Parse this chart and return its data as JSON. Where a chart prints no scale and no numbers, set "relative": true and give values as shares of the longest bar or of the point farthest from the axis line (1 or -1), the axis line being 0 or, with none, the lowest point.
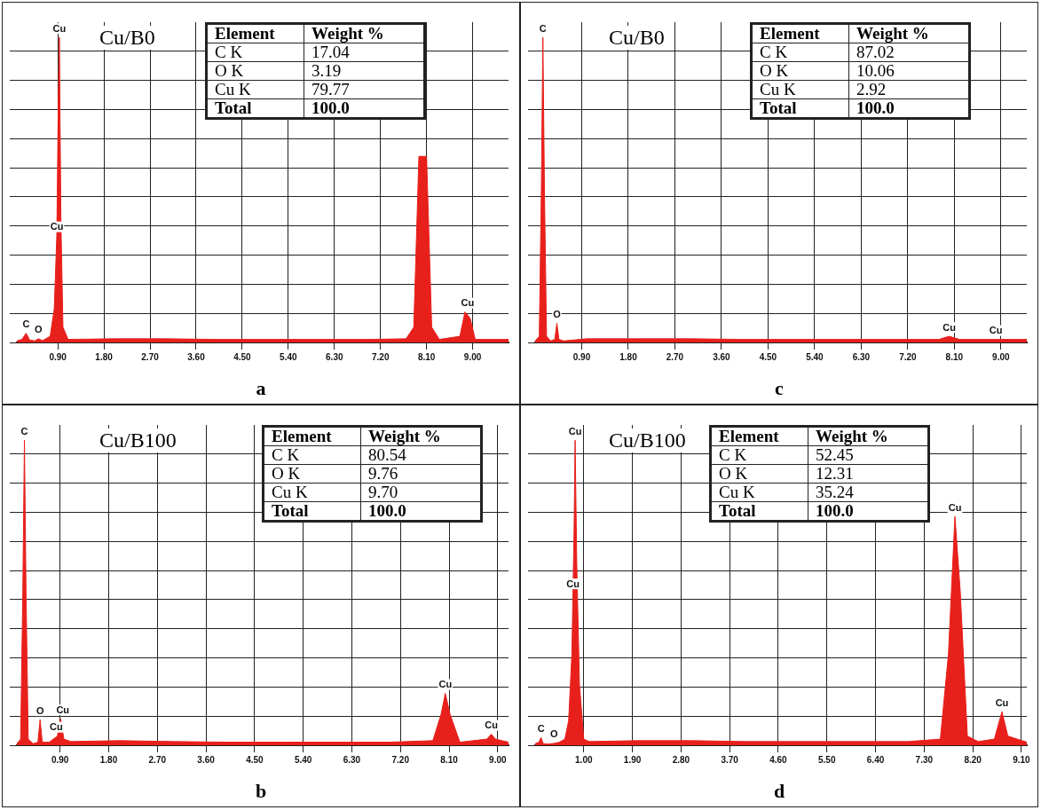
{
  "chart_data": [
    {
      "type": "area",
      "title": "Cu/B0",
      "xlabel": "a",
      "relative": true,
      "grid": true,
      "marker": "none",
      "color": "#e8201c",
      "xlim": [
        0.1,
        9.7
      ],
      "xticks": [
        {
          "value": 0.9,
          "label": "0.90"
        },
        {
          "value": 1.8,
          "label": "1.80"
        },
        {
          "value": 2.7,
          "label": "2.70"
        },
        {
          "value": 3.6,
          "label": "3.60"
        },
        {
          "value": 4.5,
          "label": "4.50"
        },
        {
          "value": 5.4,
          "label": "5.40"
        },
        {
          "value": 6.3,
          "label": "6.30"
        },
        {
          "value": 7.2,
          "label": "7.20"
        },
        {
          "value": 8.1,
          "label": "8.10"
        },
        {
          "value": 9.0,
          "label": "9.00"
        }
      ],
      "x": [
        0.1,
        0.2,
        0.28,
        0.35,
        0.45,
        0.52,
        0.6,
        0.75,
        0.83,
        0.88,
        0.91,
        0.93,
        0.96,
        1.0,
        1.1,
        2.0,
        3.0,
        4.0,
        5.0,
        6.0,
        7.0,
        7.7,
        7.85,
        7.95,
        8.1,
        8.2,
        8.35,
        8.75,
        8.85,
        8.95,
        9.05,
        9.7
      ],
      "values": [
        0.005,
        0.01,
        0.03,
        0.008,
        0.005,
        0.012,
        0.006,
        0.02,
        0.11,
        0.35,
        0.8,
        1,
        0.4,
        0.05,
        0.01,
        0.012,
        0.012,
        0.01,
        0.01,
        0.01,
        0.01,
        0.012,
        0.05,
        0.61,
        0.61,
        0.05,
        0.01,
        0.02,
        0.1,
        0.08,
        0.01,
        0.01
      ],
      "annotations": [
        "Element",
        "Weight %",
        "C K",
        "17.04",
        "O K",
        "3.19",
        "Cu K",
        "79.77",
        "Total",
        "100.0",
        {
          "text": "Cu",
          "x": 0.93,
          "y": 1
        },
        {
          "text": "Cu",
          "x": 0.88,
          "y": 0.35
        },
        {
          "text": "C",
          "x": 0.28,
          "y": 0.03
        },
        {
          "text": "O",
          "x": 0.52,
          "y": 0.012
        },
        {
          "text": "Cu",
          "x": 8.9,
          "y": 0.1
        }
      ]
    },
    {
      "type": "area",
      "title": "Cu/B0",
      "xlabel": "c",
      "relative": true,
      "grid": true,
      "marker": "none",
      "color": "#e8201c",
      "xlim": [
        0,
        9.5
      ],
      "xticks": [
        {
          "value": 0.9,
          "label": "0.90"
        },
        {
          "value": 1.8,
          "label": "1.80"
        },
        {
          "value": 2.7,
          "label": "2.70"
        },
        {
          "value": 3.6,
          "label": "3.60"
        },
        {
          "value": 4.5,
          "label": "4.50"
        },
        {
          "value": 5.4,
          "label": "5.40"
        },
        {
          "value": 6.3,
          "label": "6.30"
        },
        {
          "value": 7.2,
          "label": "7.20"
        },
        {
          "value": 8.1,
          "label": "8.10"
        },
        {
          "value": 9.0,
          "label": "9.00"
        }
      ],
      "x": [
        0,
        0.08,
        0.12,
        0.15,
        0.18,
        0.22,
        0.3,
        0.38,
        0.42,
        0.46,
        0.55,
        1.0,
        2.0,
        3.0,
        4.0,
        5.0,
        6.0,
        7.0,
        7.8,
        8.0,
        8.2,
        8.9,
        9.5
      ],
      "values": [
        0.005,
        0.02,
        0.5,
        1,
        0.5,
        0.02,
        0.005,
        0.01,
        0.063,
        0.01,
        0.005,
        0.012,
        0.012,
        0.012,
        0.01,
        0.01,
        0.01,
        0.01,
        0.01,
        0.02,
        0.01,
        0.01,
        0.01
      ],
      "annotations": [
        "Element",
        "Weight %",
        "C K",
        "87.02",
        "O K",
        "10.06",
        "Cu K",
        "2.92",
        "Total",
        "100.0",
        {
          "text": "C",
          "x": 0.15,
          "y": 1
        },
        {
          "text": "O",
          "x": 0.42,
          "y": 0.063
        },
        {
          "text": "Cu",
          "x": 8.0,
          "y": 0.02
        },
        {
          "text": "Cu",
          "x": 8.9,
          "y": 0.01
        }
      ]
    },
    {
      "type": "area",
      "title": "Cu/B100",
      "xlabel": "b",
      "relative": true,
      "grid": true,
      "marker": "none",
      "color": "#e8201c",
      "xlim": [
        0.1,
        9.2
      ],
      "xticks": [
        {
          "value": 0.9,
          "label": "0.90"
        },
        {
          "value": 1.8,
          "label": "1.80"
        },
        {
          "value": 2.7,
          "label": "2.70"
        },
        {
          "value": 3.6,
          "label": "3.60"
        },
        {
          "value": 4.5,
          "label": "4.50"
        },
        {
          "value": 5.4,
          "label": "5.40"
        },
        {
          "value": 6.3,
          "label": "6.30"
        },
        {
          "value": 7.2,
          "label": "7.20"
        },
        {
          "value": 8.1,
          "label": "8.10"
        },
        {
          "value": 9.0,
          "label": "9.00"
        }
      ],
      "x": [
        0.1,
        0.17,
        0.21,
        0.24,
        0.27,
        0.31,
        0.4,
        0.49,
        0.53,
        0.57,
        0.7,
        0.85,
        0.91,
        0.97,
        1.1,
        2.0,
        3.0,
        4.0,
        5.0,
        6.0,
        7.0,
        7.8,
        7.95,
        8.03,
        8.12,
        8.3,
        8.8,
        8.88,
        8.96,
        9.2
      ],
      "values": [
        0.005,
        0.02,
        0.5,
        1,
        0.5,
        0.02,
        0.005,
        0.01,
        0.084,
        0.01,
        0.01,
        0.03,
        0.087,
        0.02,
        0.012,
        0.015,
        0.012,
        0.01,
        0.01,
        0.01,
        0.01,
        0.015,
        0.1,
        0.17,
        0.1,
        0.01,
        0.02,
        0.036,
        0.02,
        0.01
      ],
      "annotations": [
        "Element",
        "Weight %",
        "C K",
        "80.54",
        "O K",
        "9.76",
        "Cu K",
        "9.70",
        "Total",
        "100.0",
        {
          "text": "C",
          "x": 0.24,
          "y": 1
        },
        {
          "text": "O",
          "x": 0.53,
          "y": 0.084
        },
        {
          "text": "Cu",
          "x": 0.95,
          "y": 0.087
        },
        {
          "text": "Cu",
          "x": 0.83,
          "y": 0.03
        },
        {
          "text": "Cu",
          "x": 8.03,
          "y": 0.17
        },
        {
          "text": "Cu",
          "x": 8.88,
          "y": 0.036
        }
      ]
    },
    {
      "type": "area",
      "title": "Cu/B100",
      "xlabel": "d",
      "relative": true,
      "grid": true,
      "marker": "none",
      "color": "#e8201c",
      "xlim": [
        0.1,
        9.2
      ],
      "xticks": [
        {
          "value": 1.0,
          "label": "1.00"
        },
        {
          "value": 1.9,
          "label": "1.90"
        },
        {
          "value": 2.8,
          "label": "2.80"
        },
        {
          "value": 3.7,
          "label": "3.70"
        },
        {
          "value": 4.6,
          "label": "4.60"
        },
        {
          "value": 5.5,
          "label": "5.50"
        },
        {
          "value": 6.4,
          "label": "6.40"
        },
        {
          "value": 7.3,
          "label": "7.30"
        },
        {
          "value": 8.2,
          "label": "8.20"
        },
        {
          "value": 9.1,
          "label": "9.10"
        }
      ],
      "x": [
        0.1,
        0.17,
        0.21,
        0.25,
        0.35,
        0.45,
        0.55,
        0.65,
        0.72,
        0.78,
        0.82,
        0.84,
        0.87,
        0.92,
        1.0,
        1.1,
        2.0,
        3.0,
        4.0,
        5.0,
        6.0,
        7.0,
        7.6,
        7.75,
        7.87,
        7.97,
        8.1,
        8.3,
        8.6,
        8.74,
        8.85,
        9.2
      ],
      "values": [
        0.005,
        0.01,
        0.025,
        0.005,
        0.004,
        0.006,
        0.01,
        0.02,
        0.08,
        0.3,
        0.7,
        1,
        0.6,
        0.2,
        0.02,
        0.012,
        0.015,
        0.015,
        0.012,
        0.012,
        0.012,
        0.012,
        0.02,
        0.3,
        0.75,
        0.5,
        0.03,
        0.012,
        0.02,
        0.11,
        0.03,
        0.01
      ],
      "annotations": [
        "Element",
        "Weight %",
        "C K",
        "52.45",
        "O K",
        "12.31",
        "Cu K",
        "35.24",
        "Total",
        "100.0",
        {
          "text": "Cu",
          "x": 0.84,
          "y": 1
        },
        {
          "text": "Cu",
          "x": 0.8,
          "y": 0.5
        },
        {
          "text": "C",
          "x": 0.21,
          "y": 0.025
        },
        {
          "text": "O",
          "x": 0.45,
          "y": 0.006
        },
        {
          "text": "Cu",
          "x": 7.87,
          "y": 0.75
        },
        {
          "text": "Cu",
          "x": 8.74,
          "y": 0.11
        }
      ]
    }
  ]
}
